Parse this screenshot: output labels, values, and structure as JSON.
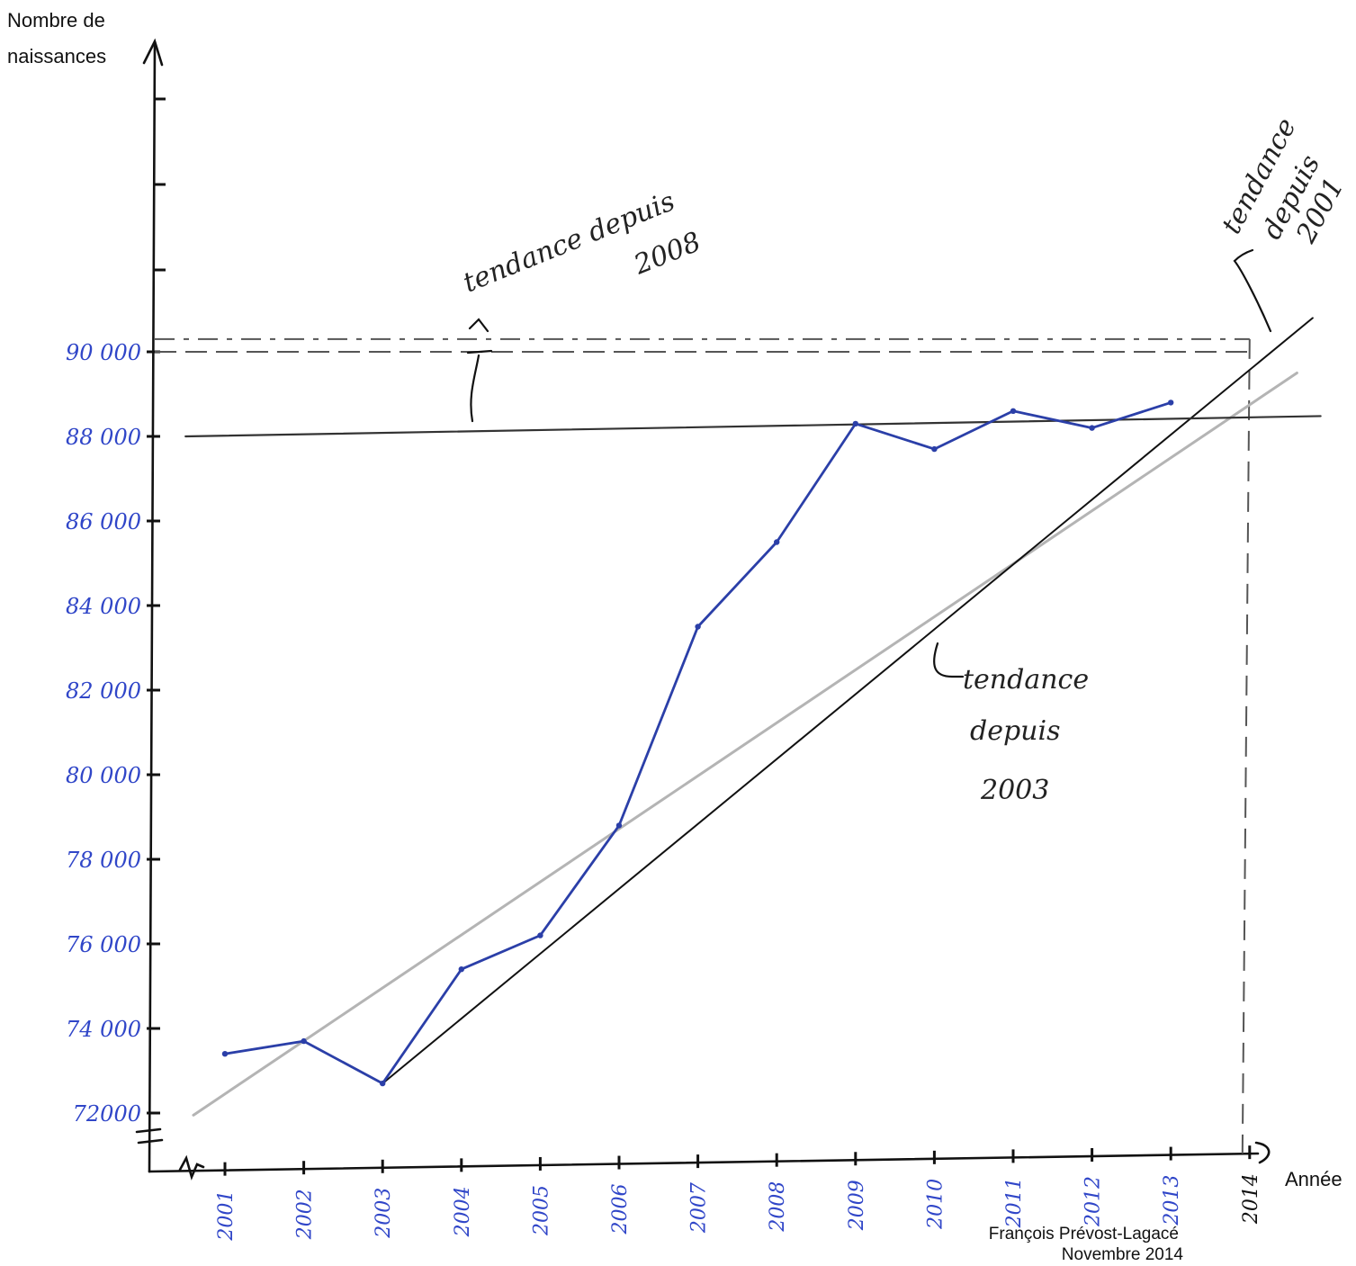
{
  "colors": {
    "births": "#2b3fa8",
    "ink": "#111111",
    "trend_2001": "#b4b4b4",
    "trend_2003": "#111111",
    "trend_2008": "#333333",
    "label_ink": "#3046c8"
  },
  "labels": {
    "y_title_line1": "Nombre de",
    "y_title_line2": "naissances",
    "x_title": "Année",
    "credit_line1": "François Prévost-Lagacé",
    "credit_line2": "Novembre 2014",
    "note_2008_line1": "tendance depuis",
    "note_2008_line2": "2008",
    "note_2001_line1": "tendance",
    "note_2001_line2": "depuis",
    "note_2001_line3": "2001",
    "note_2003_line1": "tendance",
    "note_2003_line2": "depuis",
    "note_2003_line3": "2003"
  },
  "chart_data": {
    "type": "line",
    "x": [
      2001,
      2002,
      2003,
      2004,
      2005,
      2006,
      2007,
      2008,
      2009,
      2010,
      2011,
      2012,
      2013
    ],
    "x_tick_labels": [
      "2001",
      "2002",
      "2003",
      "2004",
      "2005",
      "2006",
      "2007",
      "2008",
      "2009",
      "2010",
      "2011",
      "2012",
      "2013",
      "2014"
    ],
    "y_tick_values": [
      72000,
      74000,
      76000,
      78000,
      80000,
      82000,
      84000,
      86000,
      88000,
      90000
    ],
    "y_tick_labels": [
      "72000",
      "74 000",
      "76 000",
      "78 000",
      "80 000",
      "82 000",
      "84 000",
      "86 000",
      "88 000",
      "90 000"
    ],
    "xlim": [
      2000.5,
      2014.1
    ],
    "ylim": [
      71500,
      96000
    ],
    "series": [
      {
        "values": [
          73400,
          73700,
          72700,
          75400,
          76200,
          78800,
          83500,
          85500,
          88300,
          87700,
          88600,
          88200,
          88800
        ]
      }
    ],
    "trend_lines": [
      {
        "from": [
          2000.6,
          71950
        ],
        "to": [
          2014.6,
          89500
        ]
      },
      {
        "from": [
          2003.0,
          72700
        ],
        "to": [
          2014.8,
          90800
        ]
      },
      {
        "from": [
          2000.5,
          88000
        ],
        "to": [
          2014.9,
          88480
        ]
      }
    ],
    "projections": [
      {
        "x": 2014,
        "y": 90300
      },
      {
        "x": 2014,
        "y": 90000
      }
    ],
    "grid": false
  }
}
